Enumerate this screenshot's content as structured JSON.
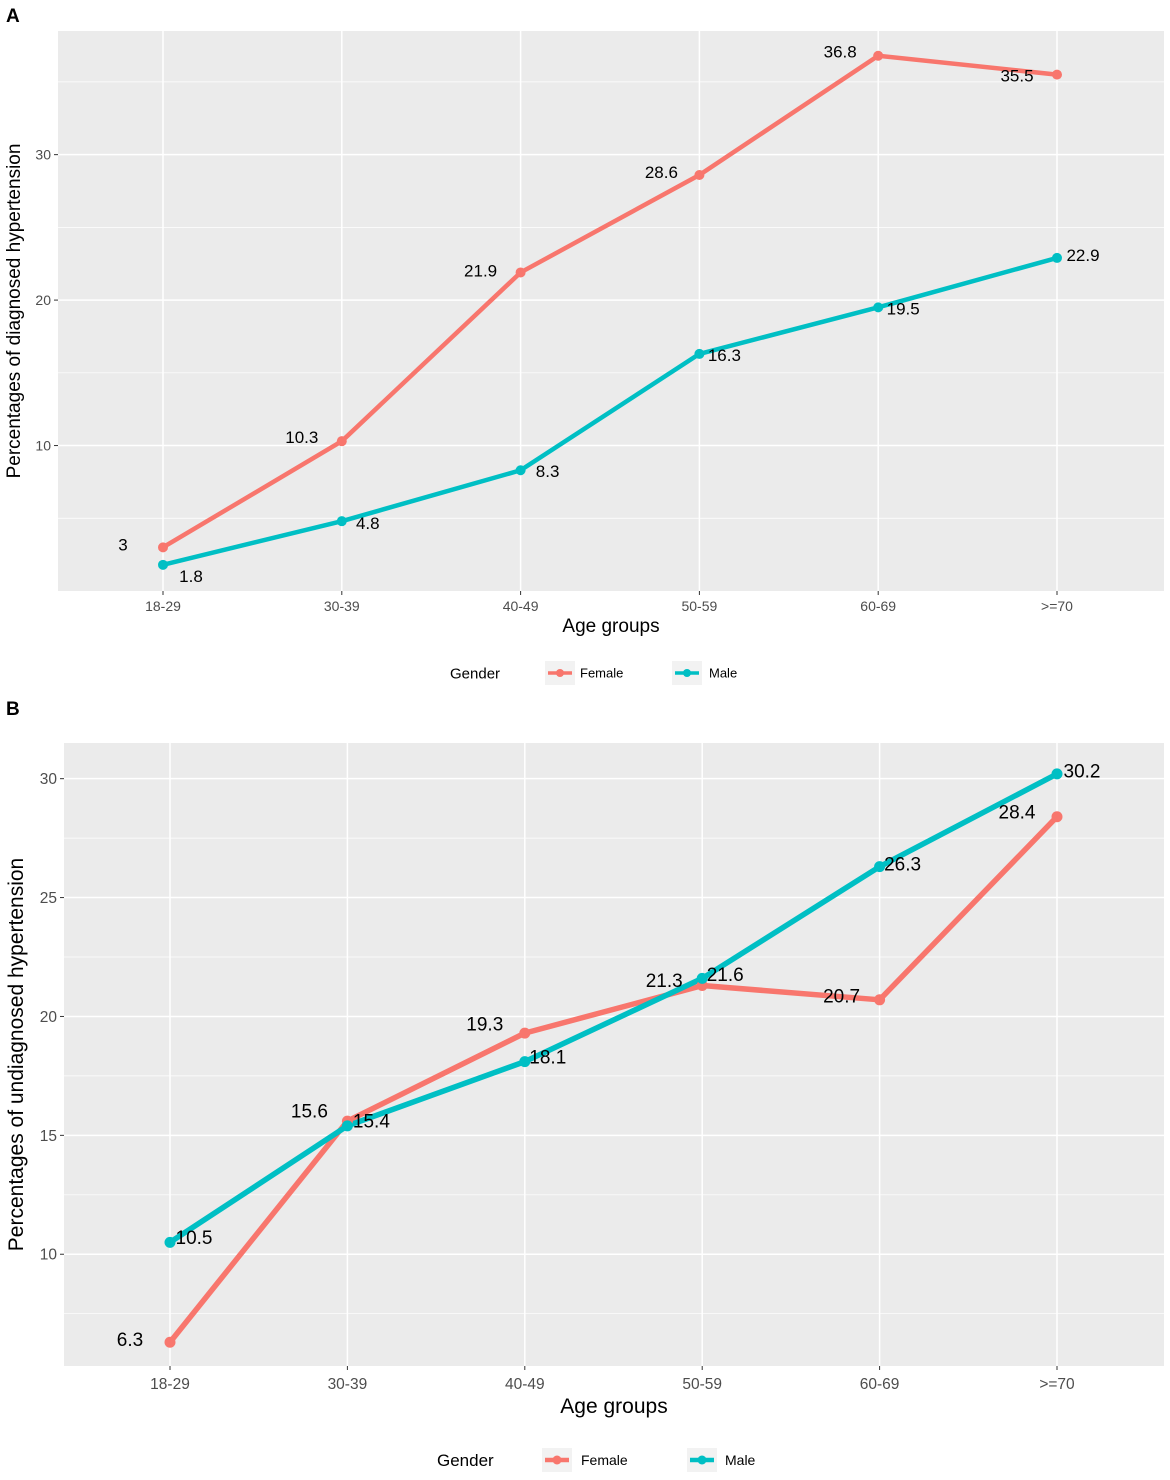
{
  "colors": {
    "female": "#F8766D",
    "male": "#00BFC4",
    "panel_bg": "#EBEBEB",
    "grid": "#FFFFFF"
  },
  "chart_data": [
    {
      "panel": "A",
      "type": "line",
      "title": "",
      "xlabel": "Age groups",
      "ylabel": "Percentages of diagnosed hypertension",
      "categories": [
        "18-29",
        "30-39",
        "40-49",
        "50-59",
        "60-69",
        ">=70"
      ],
      "ylim": [
        0,
        38.5
      ],
      "yticks": [
        10,
        20,
        30
      ],
      "grid": true,
      "legend": {
        "title": "Gender",
        "position": "bottom"
      },
      "series": [
        {
          "name": "Female",
          "color": "#F8766D",
          "values": [
            3,
            10.3,
            21.9,
            28.6,
            36.8,
            35.5
          ],
          "labels": [
            "3",
            "10.3",
            "21.9",
            "28.6",
            "36.8",
            "35.5"
          ]
        },
        {
          "name": "Male",
          "color": "#00BFC4",
          "values": [
            1.8,
            4.8,
            8.3,
            16.3,
            19.5,
            22.9
          ],
          "labels": [
            "1.8",
            "4.8",
            "8.3",
            "16.3",
            "19.5",
            "22.9"
          ]
        }
      ]
    },
    {
      "panel": "B",
      "type": "line",
      "title": "",
      "xlabel": "Age groups",
      "ylabel": "Percentages of undiagnosed hypertension",
      "categories": [
        "18-29",
        "30-39",
        "40-49",
        "50-59",
        "60-69",
        ">=70"
      ],
      "ylim": [
        5.3,
        31.5
      ],
      "yticks": [
        10,
        15,
        20,
        25,
        30
      ],
      "grid": true,
      "legend": {
        "title": "Gender",
        "position": "bottom"
      },
      "series": [
        {
          "name": "Female",
          "color": "#F8766D",
          "values": [
            6.3,
            15.6,
            19.3,
            21.3,
            20.7,
            28.4
          ],
          "labels": [
            "6.3",
            "15.6",
            "19.3",
            "21.3",
            "20.7",
            "28.4"
          ]
        },
        {
          "name": "Male",
          "color": "#00BFC4",
          "values": [
            10.5,
            15.4,
            18.1,
            21.6,
            26.3,
            30.2
          ],
          "labels": [
            "10.5",
            "15.4",
            "18.1",
            "21.6",
            "26.3",
            "30.2"
          ]
        }
      ]
    }
  ]
}
